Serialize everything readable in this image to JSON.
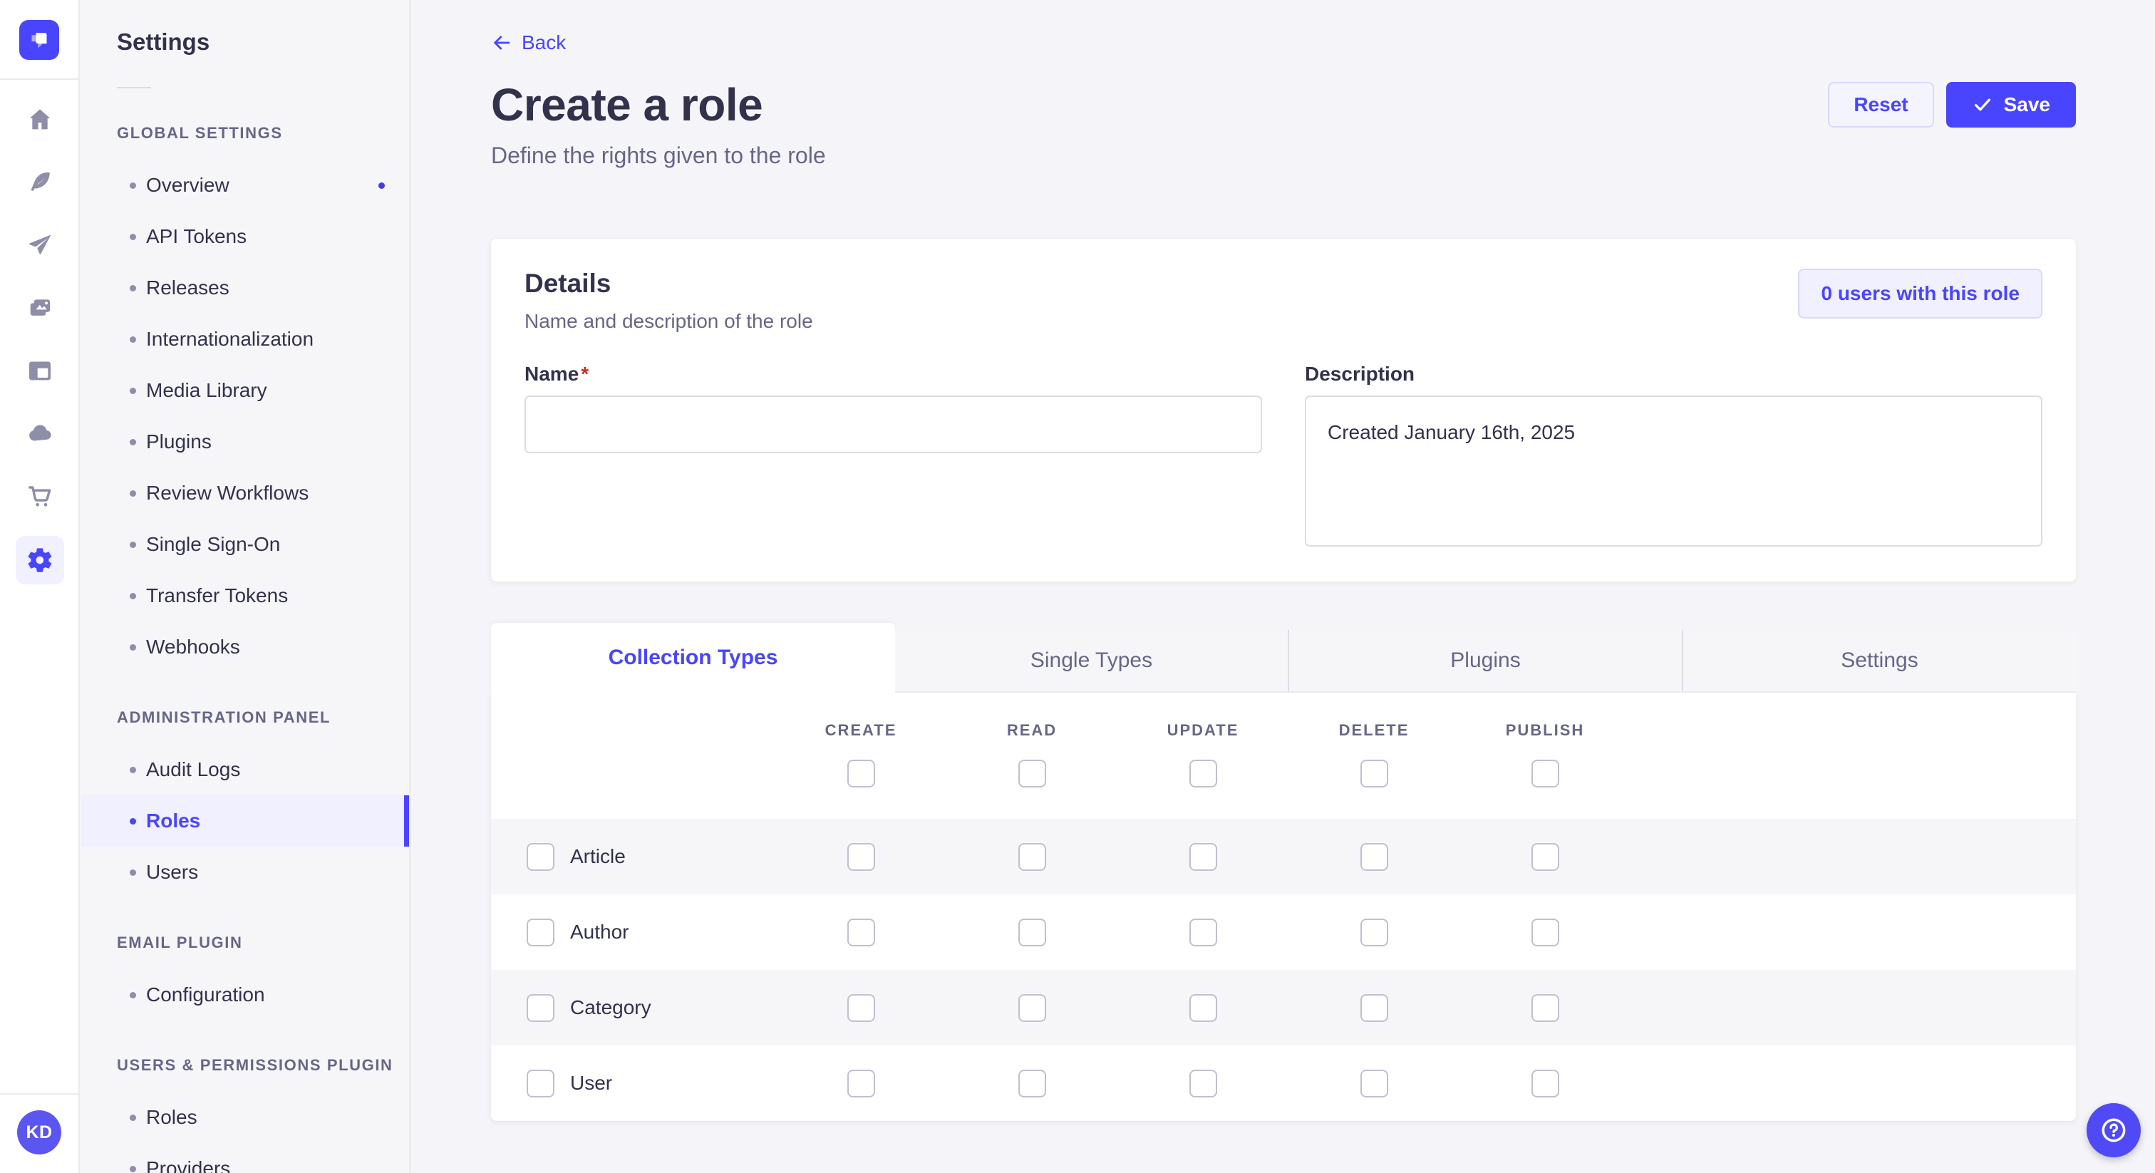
{
  "colors": {
    "primary": "#4945ff",
    "primary_light_bg": "#f0f0ff",
    "primary_border": "#d9d8ff",
    "text_dark": "#32324d",
    "text_muted": "#666687",
    "page_bg": "#f5f5f9",
    "panel_bg": "#f6f6f9",
    "border": "#dcdce4",
    "checkbox_border": "#c0c0cf",
    "rail_icon": "#8e8ea9",
    "required_red": "#d02b20"
  },
  "rail": {
    "logo_icon": "strapi-logo-icon",
    "icons": [
      {
        "name": "home-icon"
      },
      {
        "name": "feather-icon"
      },
      {
        "name": "paper-plane-icon"
      },
      {
        "name": "media-library-icon"
      },
      {
        "name": "layout-icon"
      },
      {
        "name": "cloud-icon"
      },
      {
        "name": "cart-icon"
      },
      {
        "name": "settings-gear-icon",
        "active": true
      }
    ],
    "avatar_initials": "KD"
  },
  "sidebar": {
    "title": "Settings",
    "sections": [
      {
        "label": "GLOBAL SETTINGS",
        "items": [
          {
            "label": "Overview",
            "notification": true
          },
          {
            "label": "API Tokens"
          },
          {
            "label": "Releases"
          },
          {
            "label": "Internationalization"
          },
          {
            "label": "Media Library"
          },
          {
            "label": "Plugins"
          },
          {
            "label": "Review Workflows"
          },
          {
            "label": "Single Sign-On"
          },
          {
            "label": "Transfer Tokens"
          },
          {
            "label": "Webhooks"
          }
        ]
      },
      {
        "label": "ADMINISTRATION PANEL",
        "items": [
          {
            "label": "Audit Logs"
          },
          {
            "label": "Roles",
            "active": true
          },
          {
            "label": "Users"
          }
        ]
      },
      {
        "label": "EMAIL PLUGIN",
        "items": [
          {
            "label": "Configuration"
          }
        ]
      },
      {
        "label": "USERS & PERMISSIONS PLUGIN",
        "items": [
          {
            "label": "Roles"
          },
          {
            "label": "Providers"
          }
        ]
      }
    ]
  },
  "header": {
    "back_label": "Back",
    "title": "Create a role",
    "subtitle": "Define the rights given to the role",
    "reset_label": "Reset",
    "save_label": "Save"
  },
  "details": {
    "title": "Details",
    "subtitle": "Name and description of the role",
    "users_badge": "0 users with this role",
    "name_label": "Name",
    "required_mark": "*",
    "name_value": "",
    "description_label": "Description",
    "description_value": "Created January 16th, 2025"
  },
  "tabs": [
    {
      "label": "Collection Types",
      "active": true
    },
    {
      "label": "Single Types"
    },
    {
      "label": "Plugins"
    },
    {
      "label": "Settings"
    }
  ],
  "permissions": {
    "columns": [
      "CREATE",
      "READ",
      "UPDATE",
      "DELETE",
      "PUBLISH"
    ],
    "rows": [
      "Article",
      "Author",
      "Category",
      "User"
    ]
  },
  "help": {
    "icon": "question-icon"
  }
}
